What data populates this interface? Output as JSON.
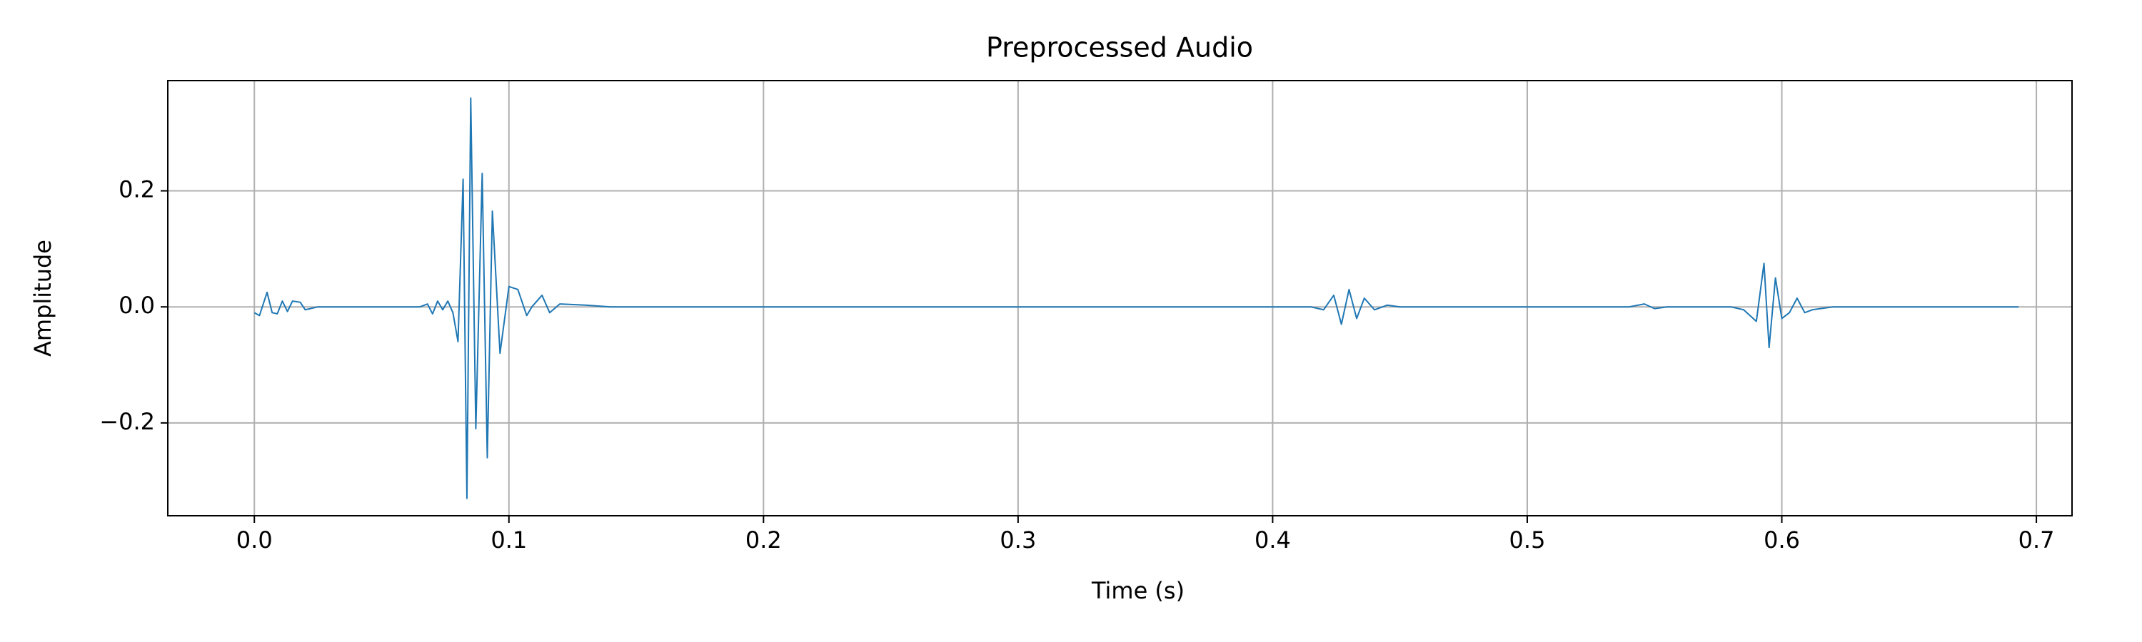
{
  "chart_data": {
    "type": "line",
    "title": "Preprocessed Audio",
    "xlabel": "Time (s)",
    "ylabel": "Amplitude",
    "x": [
      0.0,
      0.002,
      0.005,
      0.007,
      0.009,
      0.011,
      0.013,
      0.015,
      0.018,
      0.02,
      0.025,
      0.03,
      0.05,
      0.065,
      0.068,
      0.07,
      0.072,
      0.074,
      0.076,
      0.078,
      0.08,
      0.082,
      0.0835,
      0.085,
      0.087,
      0.0895,
      0.0915,
      0.0935,
      0.0965,
      0.1,
      0.1035,
      0.107,
      0.109,
      0.113,
      0.116,
      0.12,
      0.13,
      0.14,
      0.2,
      0.3,
      0.4,
      0.415,
      0.42,
      0.424,
      0.427,
      0.43,
      0.433,
      0.436,
      0.44,
      0.445,
      0.45,
      0.5,
      0.54,
      0.546,
      0.55,
      0.555,
      0.58,
      0.585,
      0.59,
      0.593,
      0.595,
      0.5975,
      0.6,
      0.603,
      0.606,
      0.609,
      0.612,
      0.62,
      0.65,
      0.693
    ],
    "values": [
      -0.01,
      -0.015,
      0.025,
      -0.01,
      -0.012,
      0.01,
      -0.008,
      0.01,
      0.008,
      -0.005,
      0.0,
      0.0,
      0.0,
      0.0,
      0.005,
      -0.012,
      0.01,
      -0.005,
      0.01,
      -0.01,
      -0.06,
      0.22,
      -0.33,
      0.36,
      -0.21,
      0.23,
      -0.26,
      0.165,
      -0.08,
      0.035,
      0.03,
      -0.015,
      0.0,
      0.02,
      -0.01,
      0.005,
      0.003,
      0.0,
      0.0,
      0.0,
      0.0,
      0.0,
      -0.005,
      0.02,
      -0.03,
      0.03,
      -0.02,
      0.015,
      -0.005,
      0.003,
      0.0,
      0.0,
      0.0,
      0.005,
      -0.003,
      0.0,
      0.0,
      -0.005,
      -0.025,
      0.075,
      -0.07,
      0.05,
      -0.02,
      -0.01,
      0.015,
      -0.01,
      -0.005,
      0.0,
      0.0,
      0.0
    ],
    "color": "#1f77b4",
    "xlim": [
      -0.034,
      0.714
    ],
    "ylim": [
      -0.36,
      0.39
    ],
    "xticks": [
      {
        "value": 0,
        "label": "0.0"
      },
      0.1,
      0.2,
      0.3,
      0.4,
      0.5,
      0.6,
      0.7
    ],
    "yticks": [
      {
        "value": -0.2,
        "label": "−0.2"
      },
      {
        "value": 0,
        "label": "0.0"
      },
      0.2
    ],
    "grid": true
  }
}
